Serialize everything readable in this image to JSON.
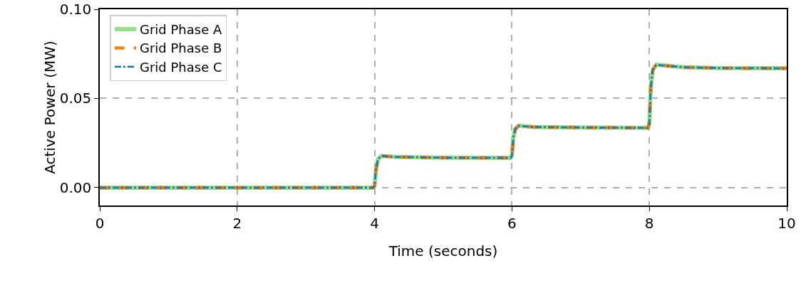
{
  "chart_data": {
    "type": "line",
    "xlabel": "Time (seconds)",
    "ylabel": "Active Power (MW)",
    "x": [
      0,
      1,
      2,
      3,
      3.98,
      4.0,
      4.02,
      4.05,
      4.1,
      4.3,
      5,
      5.98,
      6.0,
      6.02,
      6.05,
      6.1,
      6.3,
      7,
      7.98,
      8.0,
      8.02,
      8.05,
      8.1,
      8.2,
      8.5,
      9,
      10
    ],
    "series": [
      {
        "name": "Grid Phase A",
        "color": "#98df8a",
        "line_style": "solid",
        "values": [
          0,
          0,
          0,
          0,
          0,
          0.001,
          0.01,
          0.016,
          0.0178,
          0.0172,
          0.0168,
          0.0167,
          0.018,
          0.028,
          0.033,
          0.0347,
          0.034,
          0.0337,
          0.0335,
          0.036,
          0.056,
          0.066,
          0.0689,
          0.0685,
          0.0675,
          0.067,
          0.0669
        ]
      },
      {
        "name": "Grid Phase B",
        "color": "#ff7f0e",
        "line_style": "dashed",
        "values": [
          0,
          0,
          0,
          0,
          0,
          0.001,
          0.01,
          0.016,
          0.0178,
          0.0172,
          0.0168,
          0.0167,
          0.018,
          0.028,
          0.033,
          0.0347,
          0.034,
          0.0337,
          0.0335,
          0.036,
          0.056,
          0.066,
          0.0689,
          0.0685,
          0.0675,
          0.067,
          0.0669
        ]
      },
      {
        "name": "Grid Phase C",
        "color": "#1f77b4",
        "line_style": "dashdot",
        "values": [
          0,
          0,
          0,
          0,
          0,
          0.001,
          0.01,
          0.016,
          0.0178,
          0.0172,
          0.0168,
          0.0167,
          0.018,
          0.028,
          0.033,
          0.0347,
          0.034,
          0.0337,
          0.0335,
          0.036,
          0.056,
          0.066,
          0.0689,
          0.0685,
          0.0675,
          0.067,
          0.0669
        ]
      }
    ],
    "xlim": [
      0,
      10
    ],
    "xticks": [
      0,
      2,
      4,
      6,
      8,
      10
    ],
    "ylim": [
      -0.01,
      0.1
    ],
    "yticks": [
      {
        "value": 0,
        "label": "0.00"
      },
      {
        "value": 0.05,
        "label": "0.05"
      },
      {
        "value": 0.1,
        "label": "0.10"
      }
    ],
    "grid": true,
    "legend": "top left",
    "marker": "none"
  }
}
